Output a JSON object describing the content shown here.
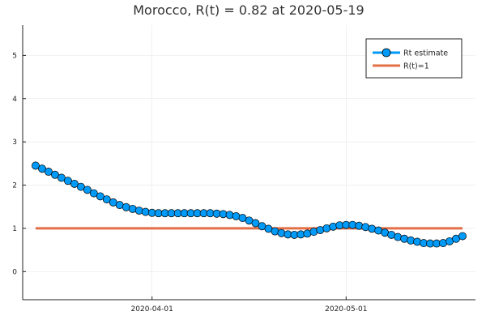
{
  "chart_data": {
    "type": "line",
    "title": "Morocco, R(t) = 0.82 at 2020-05-19",
    "xlabel": "",
    "ylabel": "",
    "x_tick_labels": [
      "2020-04-01",
      "2020-05-01"
    ],
    "x_ticks": [
      "2020-04-01",
      "2020-05-01"
    ],
    "y_ticks": [
      0,
      1,
      2,
      3,
      4,
      5
    ],
    "ylim": [
      -0.65,
      5.7
    ],
    "xlim": [
      "2020-03-12",
      "2020-05-21"
    ],
    "grid": true,
    "legend_position": "top-right",
    "series": [
      {
        "name": "Rt estimate",
        "color": "#009af9",
        "marker": "circle",
        "x": [
          "2020-03-14",
          "2020-03-15",
          "2020-03-16",
          "2020-03-17",
          "2020-03-18",
          "2020-03-19",
          "2020-03-20",
          "2020-03-21",
          "2020-03-22",
          "2020-03-23",
          "2020-03-24",
          "2020-03-25",
          "2020-03-26",
          "2020-03-27",
          "2020-03-28",
          "2020-03-29",
          "2020-03-30",
          "2020-03-31",
          "2020-04-01",
          "2020-04-02",
          "2020-04-03",
          "2020-04-04",
          "2020-04-05",
          "2020-04-06",
          "2020-04-07",
          "2020-04-08",
          "2020-04-09",
          "2020-04-10",
          "2020-04-11",
          "2020-04-12",
          "2020-04-13",
          "2020-04-14",
          "2020-04-15",
          "2020-04-16",
          "2020-04-17",
          "2020-04-18",
          "2020-04-19",
          "2020-04-20",
          "2020-04-21",
          "2020-04-22",
          "2020-04-23",
          "2020-04-24",
          "2020-04-25",
          "2020-04-26",
          "2020-04-27",
          "2020-04-28",
          "2020-04-29",
          "2020-04-30",
          "2020-05-01",
          "2020-05-02",
          "2020-05-03",
          "2020-05-04",
          "2020-05-05",
          "2020-05-06",
          "2020-05-07",
          "2020-05-08",
          "2020-05-09",
          "2020-05-10",
          "2020-05-11",
          "2020-05-12",
          "2020-05-13",
          "2020-05-14",
          "2020-05-15",
          "2020-05-16",
          "2020-05-17",
          "2020-05-18",
          "2020-05-19"
        ],
        "values": [
          2.45,
          2.38,
          2.31,
          2.24,
          2.17,
          2.1,
          2.03,
          1.96,
          1.89,
          1.81,
          1.74,
          1.67,
          1.6,
          1.54,
          1.49,
          1.45,
          1.41,
          1.38,
          1.36,
          1.35,
          1.35,
          1.35,
          1.35,
          1.35,
          1.35,
          1.35,
          1.35,
          1.35,
          1.34,
          1.33,
          1.31,
          1.28,
          1.24,
          1.18,
          1.12,
          1.05,
          0.99,
          0.93,
          0.89,
          0.86,
          0.85,
          0.86,
          0.88,
          0.92,
          0.96,
          1.0,
          1.04,
          1.07,
          1.08,
          1.08,
          1.06,
          1.03,
          0.99,
          0.95,
          0.9,
          0.85,
          0.8,
          0.76,
          0.72,
          0.69,
          0.66,
          0.65,
          0.65,
          0.66,
          0.7,
          0.76,
          0.82
        ]
      },
      {
        "name": "R(t)=1",
        "color": "#e26f46",
        "marker": "none",
        "x": [
          "2020-03-14",
          "2020-05-19"
        ],
        "values": [
          1,
          1
        ]
      }
    ]
  }
}
